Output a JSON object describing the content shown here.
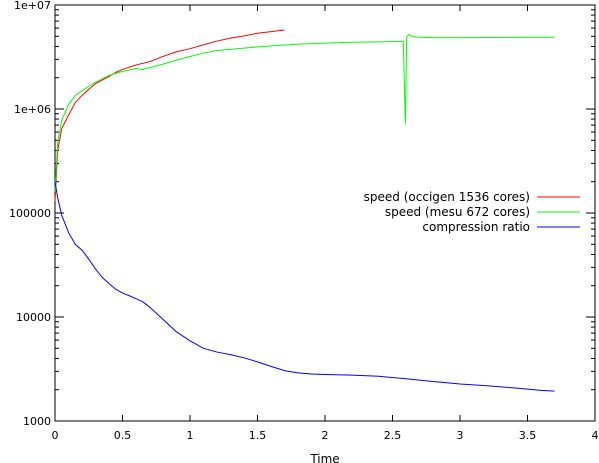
{
  "chart_data": {
    "type": "line",
    "title": "",
    "xlabel": "Time",
    "ylabel": "",
    "xlim": [
      0,
      4
    ],
    "ylim": [
      1000,
      10000000
    ],
    "yscale": "log",
    "grid": false,
    "legend_placement": "right",
    "x_ticks": [
      "0",
      "0.5",
      "1",
      "1.5",
      "2",
      "2.5",
      "3",
      "3.5",
      "4"
    ],
    "y_ticks": [
      "1000",
      "10000",
      "100000",
      "1e+06",
      "1e+07"
    ],
    "series": [
      {
        "name": "speed (occigen 1536 cores)",
        "color": "#ff0000",
        "points": [
          [
            0,
            130000
          ],
          [
            0.02,
            400000
          ],
          [
            0.05,
            650000
          ],
          [
            0.1,
            870000
          ],
          [
            0.15,
            1150000
          ],
          [
            0.2,
            1350000
          ],
          [
            0.25,
            1550000
          ],
          [
            0.3,
            1750000
          ],
          [
            0.35,
            1900000
          ],
          [
            0.4,
            2050000
          ],
          [
            0.45,
            2250000
          ],
          [
            0.5,
            2400000
          ],
          [
            0.6,
            2650000
          ],
          [
            0.7,
            2850000
          ],
          [
            0.8,
            3200000
          ],
          [
            0.9,
            3550000
          ],
          [
            1.0,
            3800000
          ],
          [
            1.1,
            4150000
          ],
          [
            1.2,
            4500000
          ],
          [
            1.3,
            4800000
          ],
          [
            1.4,
            5050000
          ],
          [
            1.5,
            5350000
          ],
          [
            1.6,
            5550000
          ],
          [
            1.7,
            5750000
          ]
        ]
      },
      {
        "name": "speed (mesu 672 cores)",
        "color": "#00ff00",
        "points": [
          [
            0,
            160000
          ],
          [
            0.02,
            480000
          ],
          [
            0.05,
            780000
          ],
          [
            0.1,
            1100000
          ],
          [
            0.15,
            1350000
          ],
          [
            0.2,
            1500000
          ],
          [
            0.25,
            1650000
          ],
          [
            0.3,
            1800000
          ],
          [
            0.35,
            1950000
          ],
          [
            0.4,
            2100000
          ],
          [
            0.5,
            2300000
          ],
          [
            0.6,
            2450000
          ],
          [
            0.65,
            2400000
          ],
          [
            0.7,
            2500000
          ],
          [
            0.8,
            2700000
          ],
          [
            0.9,
            2950000
          ],
          [
            1.0,
            3200000
          ],
          [
            1.1,
            3450000
          ],
          [
            1.2,
            3650000
          ],
          [
            1.4,
            3850000
          ],
          [
            1.6,
            4050000
          ],
          [
            1.8,
            4200000
          ],
          [
            2.0,
            4300000
          ],
          [
            2.2,
            4380000
          ],
          [
            2.4,
            4420000
          ],
          [
            2.58,
            4480000
          ],
          [
            2.595,
            720000
          ],
          [
            2.605,
            4900000
          ],
          [
            2.62,
            5200000
          ],
          [
            2.65,
            4950000
          ],
          [
            2.7,
            4900000
          ],
          [
            2.8,
            4850000
          ],
          [
            3.0,
            4850000
          ],
          [
            3.2,
            4870000
          ],
          [
            3.4,
            4880000
          ],
          [
            3.5,
            4900000
          ],
          [
            3.7,
            4900000
          ]
        ]
      },
      {
        "name": "compression ratio",
        "color": "#0000ff",
        "points": [
          [
            0,
            200000
          ],
          [
            0.02,
            140000
          ],
          [
            0.05,
            95000
          ],
          [
            0.1,
            65000
          ],
          [
            0.15,
            50000
          ],
          [
            0.2,
            44000
          ],
          [
            0.25,
            36000
          ],
          [
            0.3,
            29000
          ],
          [
            0.35,
            24000
          ],
          [
            0.4,
            21000
          ],
          [
            0.45,
            18500
          ],
          [
            0.5,
            17000
          ],
          [
            0.55,
            16000
          ],
          [
            0.6,
            15000
          ],
          [
            0.65,
            14000
          ],
          [
            0.7,
            12500
          ],
          [
            0.8,
            9500
          ],
          [
            0.9,
            7200
          ],
          [
            1.0,
            5900
          ],
          [
            1.1,
            5000
          ],
          [
            1.2,
            4600
          ],
          [
            1.3,
            4350
          ],
          [
            1.4,
            4050
          ],
          [
            1.5,
            3700
          ],
          [
            1.6,
            3350
          ],
          [
            1.7,
            3050
          ],
          [
            1.8,
            2900
          ],
          [
            1.9,
            2830
          ],
          [
            2.0,
            2800
          ],
          [
            2.2,
            2760
          ],
          [
            2.4,
            2690
          ],
          [
            2.6,
            2550
          ],
          [
            2.8,
            2400
          ],
          [
            3.0,
            2270
          ],
          [
            3.2,
            2180
          ],
          [
            3.4,
            2080
          ],
          [
            3.6,
            1970
          ],
          [
            3.7,
            1940
          ]
        ]
      }
    ]
  }
}
